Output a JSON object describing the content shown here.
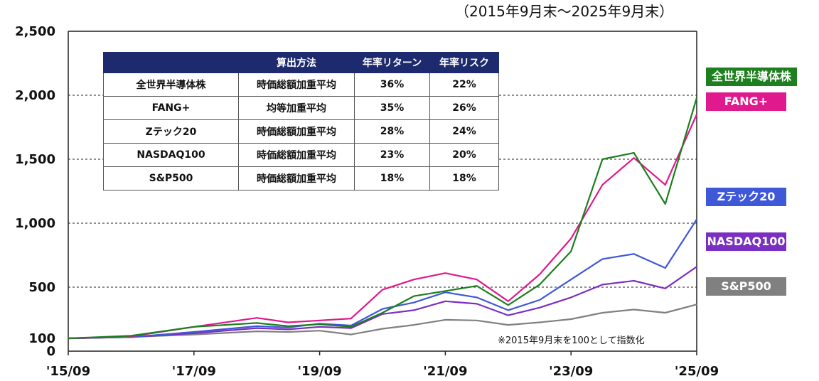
{
  "period_note": "（2015年9月末～2025年9月末）",
  "footnote": "※2015年9月末を100として指数化",
  "table": {
    "headers": [
      "",
      "算出方法",
      "年率リターン",
      "年率リスク"
    ],
    "rows": [
      [
        "全世界半導体株",
        "時価総額加重平均",
        "36%",
        "22%"
      ],
      [
        "FANG+",
        "均等加重平均",
        "35%",
        "26%"
      ],
      [
        "Zテック20",
        "時価総額加重平均",
        "28%",
        "24%"
      ],
      [
        "NASDAQ100",
        "時価総額加重平均",
        "23%",
        "20%"
      ],
      [
        "S&P500",
        "時価総額加重平均",
        "18%",
        "18%"
      ]
    ]
  },
  "chart_data": {
    "type": "line",
    "x_start": "2015-09",
    "x_end": "2025-09",
    "x_ticks": [
      "'15/09",
      "'17/09",
      "'19/09",
      "'21/09",
      "'23/09",
      "'25/09"
    ],
    "y_ticks": [
      "0",
      "100",
      "500",
      "1,000",
      "1,500",
      "2,000",
      "2,500"
    ],
    "ylim": [
      0,
      2500
    ],
    "grid_lines_y": [
      500,
      1000,
      1500,
      2000
    ],
    "series": [
      {
        "name": "S&P500",
        "color": "#808080",
        "points": [
          [
            "2015-09",
            100
          ],
          [
            "2016-09",
            110
          ],
          [
            "2017-09",
            130
          ],
          [
            "2018-09",
            155
          ],
          [
            "2019-03",
            150
          ],
          [
            "2019-09",
            160
          ],
          [
            "2020-03",
            130
          ],
          [
            "2020-09",
            175
          ],
          [
            "2021-03",
            205
          ],
          [
            "2021-09",
            245
          ],
          [
            "2022-03",
            240
          ],
          [
            "2022-09",
            205
          ],
          [
            "2023-03",
            225
          ],
          [
            "2023-09",
            250
          ],
          [
            "2024-03",
            300
          ],
          [
            "2024-09",
            325
          ],
          [
            "2025-03",
            300
          ],
          [
            "2025-09",
            365
          ]
        ]
      },
      {
        "name": "NASDAQ100",
        "color": "#7b2fc1",
        "points": [
          [
            "2015-09",
            100
          ],
          [
            "2016-09",
            110
          ],
          [
            "2017-09",
            140
          ],
          [
            "2018-09",
            180
          ],
          [
            "2019-03",
            170
          ],
          [
            "2019-09",
            190
          ],
          [
            "2020-03",
            180
          ],
          [
            "2020-09",
            290
          ],
          [
            "2021-03",
            320
          ],
          [
            "2021-09",
            390
          ],
          [
            "2022-03",
            370
          ],
          [
            "2022-09",
            280
          ],
          [
            "2023-03",
            340
          ],
          [
            "2023-09",
            420
          ],
          [
            "2024-03",
            520
          ],
          [
            "2024-09",
            550
          ],
          [
            "2025-03",
            490
          ],
          [
            "2025-09",
            660
          ]
        ]
      },
      {
        "name": "Zテック20",
        "color": "#3e58d8",
        "points": [
          [
            "2015-09",
            100
          ],
          [
            "2016-09",
            110
          ],
          [
            "2017-09",
            150
          ],
          [
            "2018-09",
            195
          ],
          [
            "2019-03",
            185
          ],
          [
            "2019-09",
            215
          ],
          [
            "2020-03",
            200
          ],
          [
            "2020-09",
            330
          ],
          [
            "2021-03",
            380
          ],
          [
            "2021-09",
            460
          ],
          [
            "2022-03",
            420
          ],
          [
            "2022-09",
            320
          ],
          [
            "2023-03",
            400
          ],
          [
            "2023-09",
            560
          ],
          [
            "2024-03",
            720
          ],
          [
            "2024-09",
            760
          ],
          [
            "2025-03",
            650
          ],
          [
            "2025-09",
            1030
          ]
        ]
      },
      {
        "name": "FANG+",
        "color": "#e0198c",
        "points": [
          [
            "2015-09",
            100
          ],
          [
            "2016-09",
            115
          ],
          [
            "2017-09",
            190
          ],
          [
            "2018-09",
            260
          ],
          [
            "2019-03",
            225
          ],
          [
            "2019-09",
            240
          ],
          [
            "2020-03",
            255
          ],
          [
            "2020-09",
            480
          ],
          [
            "2021-03",
            560
          ],
          [
            "2021-09",
            610
          ],
          [
            "2022-03",
            560
          ],
          [
            "2022-09",
            390
          ],
          [
            "2023-03",
            600
          ],
          [
            "2023-09",
            880
          ],
          [
            "2024-03",
            1300
          ],
          [
            "2024-09",
            1510
          ],
          [
            "2025-03",
            1300
          ],
          [
            "2025-09",
            1850
          ]
        ]
      },
      {
        "name": "全世界半導体株",
        "color": "#1d7f1d",
        "points": [
          [
            "2015-09",
            100
          ],
          [
            "2016-09",
            120
          ],
          [
            "2017-09",
            190
          ],
          [
            "2018-09",
            220
          ],
          [
            "2019-03",
            195
          ],
          [
            "2019-09",
            210
          ],
          [
            "2020-03",
            190
          ],
          [
            "2020-09",
            300
          ],
          [
            "2021-03",
            430
          ],
          [
            "2021-09",
            470
          ],
          [
            "2022-03",
            510
          ],
          [
            "2022-09",
            360
          ],
          [
            "2023-03",
            520
          ],
          [
            "2023-09",
            780
          ],
          [
            "2024-03",
            1500
          ],
          [
            "2024-09",
            1550
          ],
          [
            "2025-03",
            1150
          ],
          [
            "2025-09",
            1980
          ]
        ]
      }
    ]
  }
}
